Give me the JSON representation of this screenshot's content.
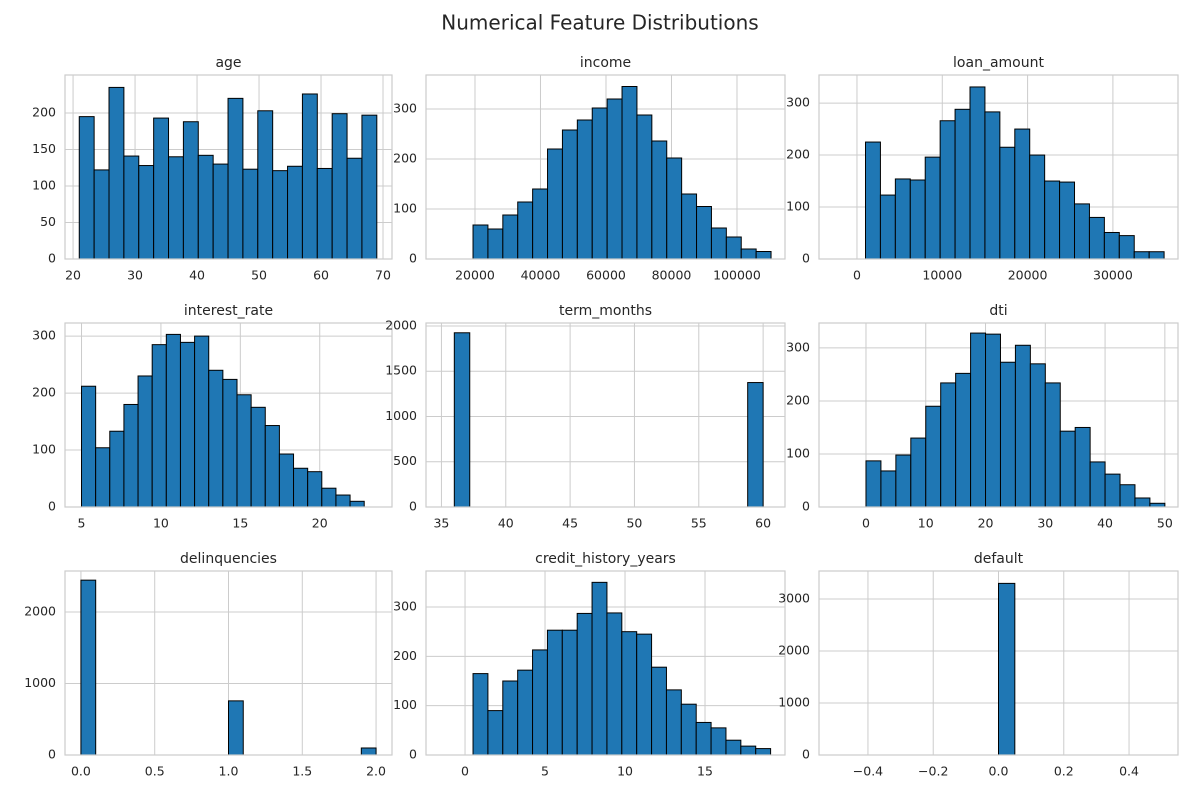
{
  "title": "Numerical Feature Distributions",
  "chart_data": [
    {
      "type": "histogram",
      "title": "age",
      "color": "#1f77b4",
      "grid": true,
      "bins": [
        21,
        23.4,
        25.8,
        28.2,
        30.6,
        33,
        35.4,
        37.8,
        40.2,
        42.6,
        45,
        47.4,
        49.8,
        52.2,
        54.6,
        57,
        59.4,
        61.8,
        64.2,
        66.6,
        69
      ],
      "values": [
        195,
        122,
        235,
        141,
        128,
        193,
        140,
        188,
        142,
        130,
        220,
        123,
        203,
        121,
        127,
        226,
        124,
        199,
        138,
        197
      ],
      "xlim": [
        18.7,
        71.45
      ],
      "xticks": [
        20,
        30,
        40,
        50,
        60,
        70
      ],
      "ylim": [
        0,
        252
      ],
      "yticks": [
        0,
        50,
        100,
        150,
        200
      ]
    },
    {
      "type": "histogram",
      "title": "income",
      "color": "#1f77b4",
      "grid": true,
      "bins": [
        19400,
        23950,
        28500,
        33050,
        37600,
        42150,
        46700,
        51250,
        55800,
        60350,
        64900,
        69450,
        74000,
        78550,
        83100,
        87650,
        92200,
        96750,
        101300,
        105850,
        110400
      ],
      "values": [
        68,
        60,
        88,
        114,
        140,
        220,
        258,
        278,
        302,
        320,
        345,
        288,
        236,
        202,
        130,
        105,
        62,
        44,
        20,
        15
      ],
      "xlim": [
        5040,
        114660
      ],
      "xticks": [
        20000,
        40000,
        60000,
        80000,
        100000
      ],
      "ylim": [
        0,
        368
      ],
      "yticks": [
        0,
        100,
        200,
        300
      ]
    },
    {
      "type": "histogram",
      "title": "loan_amount",
      "color": "#1f77b4",
      "grid": true,
      "bins": [
        1000,
        2750,
        4500,
        6250,
        8000,
        9750,
        11500,
        13250,
        15000,
        16750,
        18500,
        20250,
        22000,
        23750,
        25500,
        27250,
        29000,
        30750,
        32500,
        34250,
        36000
      ],
      "values": [
        225,
        123,
        154,
        152,
        196,
        266,
        288,
        331,
        283,
        215,
        250,
        200,
        150,
        148,
        106,
        80,
        51,
        45,
        14,
        14
      ],
      "xlim": [
        -4450,
        37630
      ],
      "xticks": [
        0,
        10000,
        20000,
        30000
      ],
      "ylim": [
        0,
        354
      ],
      "yticks": [
        0,
        100,
        200,
        300
      ]
    },
    {
      "type": "histogram",
      "title": "interest_rate",
      "color": "#1f77b4",
      "grid": true,
      "bins": [
        5,
        5.89,
        6.78,
        7.67,
        8.56,
        9.45,
        10.34,
        11.23,
        12.12,
        13.01,
        13.9,
        14.79,
        15.68,
        16.57,
        17.46,
        18.35,
        19.24,
        20.13,
        21.02,
        21.91,
        22.8
      ],
      "values": [
        212,
        104,
        133,
        180,
        230,
        285,
        303,
        289,
        300,
        240,
        224,
        197,
        175,
        143,
        93,
        68,
        62,
        33,
        21,
        10
      ],
      "xlim": [
        3.96,
        24.55
      ],
      "xticks": [
        5,
        10,
        15,
        20
      ],
      "ylim": [
        0,
        323
      ],
      "yticks": [
        0,
        100,
        200,
        300
      ]
    },
    {
      "type": "histogram",
      "title": "term_months",
      "color": "#1f77b4",
      "grid": true,
      "bins": [
        36,
        37.2,
        38.4,
        39.6,
        40.8,
        42,
        43.2,
        44.4,
        45.6,
        46.8,
        48,
        49.2,
        50.4,
        51.6,
        52.8,
        54,
        55.2,
        56.4,
        57.6,
        58.8,
        60
      ],
      "values": [
        1925,
        0,
        0,
        0,
        0,
        0,
        0,
        0,
        0,
        0,
        0,
        0,
        0,
        0,
        0,
        0,
        0,
        0,
        0,
        1375
      ],
      "xlim": [
        33.8,
        61.7
      ],
      "xticks": [
        35,
        40,
        45,
        50,
        55,
        60
      ],
      "ylim": [
        0,
        2033
      ],
      "yticks": [
        0,
        500,
        1000,
        1500,
        2000
      ]
    },
    {
      "type": "histogram",
      "title": "dti",
      "color": "#1f77b4",
      "grid": true,
      "bins": [
        0,
        2.5,
        5,
        7.5,
        10,
        12.5,
        15,
        17.5,
        20,
        22.5,
        25,
        27.5,
        30,
        32.5,
        35,
        37.5,
        40,
        42.5,
        45,
        47.5,
        50
      ],
      "values": [
        87,
        68,
        98,
        130,
        190,
        234,
        252,
        328,
        326,
        273,
        305,
        270,
        234,
        143,
        150,
        85,
        62,
        42,
        17,
        7
      ],
      "xlim": [
        -7.86,
        52.2
      ],
      "xticks": [
        0,
        10,
        20,
        30,
        40,
        50
      ],
      "ylim": [
        0,
        347
      ],
      "yticks": [
        0,
        100,
        200,
        300
      ]
    },
    {
      "type": "histogram",
      "title": "delinquencies",
      "color": "#1f77b4",
      "grid": true,
      "bins": [
        0,
        0.1,
        0.2,
        0.3,
        0.4,
        0.5,
        0.6,
        0.7,
        0.8,
        0.9,
        1,
        1.1,
        1.2,
        1.3,
        1.4,
        1.5,
        1.6,
        1.7,
        1.8,
        1.9,
        2
      ],
      "values": [
        2445,
        0,
        0,
        0,
        0,
        0,
        0,
        0,
        0,
        0,
        757,
        0,
        0,
        0,
        0,
        0,
        0,
        0,
        0,
        98
      ],
      "xlim": [
        -0.108,
        2.108
      ],
      "xticks": [
        {
          "value": 0,
          "label": "0.0"
        },
        0.5,
        {
          "value": 1,
          "label": "1.0"
        },
        1.5,
        {
          "value": 2,
          "label": "2.0"
        }
      ],
      "ylim": [
        0,
        2573
      ],
      "yticks": [
        0,
        1000,
        2000
      ]
    },
    {
      "type": "histogram",
      "title": "credit_history_years",
      "color": "#1f77b4",
      "grid": true,
      "bins": [
        0.5,
        1.43,
        2.36,
        3.29,
        4.22,
        5.15,
        6.08,
        7.01,
        7.94,
        8.87,
        9.8,
        10.73,
        11.66,
        12.59,
        13.52,
        14.45,
        15.38,
        16.31,
        17.24,
        18.17,
        19.1
      ],
      "values": [
        165,
        90,
        150,
        172,
        213,
        253,
        253,
        287,
        350,
        288,
        250,
        245,
        178,
        132,
        103,
        66,
        55,
        30,
        18,
        13
      ],
      "xlim": [
        -2.44,
        20
      ],
      "xticks": [
        0,
        5,
        10,
        15
      ],
      "ylim": [
        0,
        373
      ],
      "yticks": [
        0,
        100,
        200,
        300
      ]
    },
    {
      "type": "histogram",
      "title": "default",
      "color": "#1f77b4",
      "grid": true,
      "bins": [
        -0.5,
        -0.45,
        -0.4,
        -0.35,
        -0.3,
        -0.25,
        -0.2,
        -0.15,
        -0.1,
        -0.05,
        0,
        0.05,
        0.1,
        0.15,
        0.2,
        0.25,
        0.3,
        0.35,
        0.4,
        0.45,
        0.5
      ],
      "values": [
        0,
        0,
        0,
        0,
        0,
        0,
        0,
        0,
        0,
        0,
        3300,
        0,
        0,
        0,
        0,
        0,
        0,
        0,
        0,
        0
      ],
      "xlim": [
        -0.55,
        0.55
      ],
      "xticks": [
        {
          "value": -0.4,
          "label": "−0.4"
        },
        {
          "value": -0.2,
          "label": "−0.2"
        },
        {
          "value": 0,
          "label": "0.0"
        },
        0.2,
        0.4
      ],
      "ylim": [
        0,
        3538
      ],
      "yticks": [
        0,
        1000,
        2000,
        3000
      ]
    }
  ]
}
